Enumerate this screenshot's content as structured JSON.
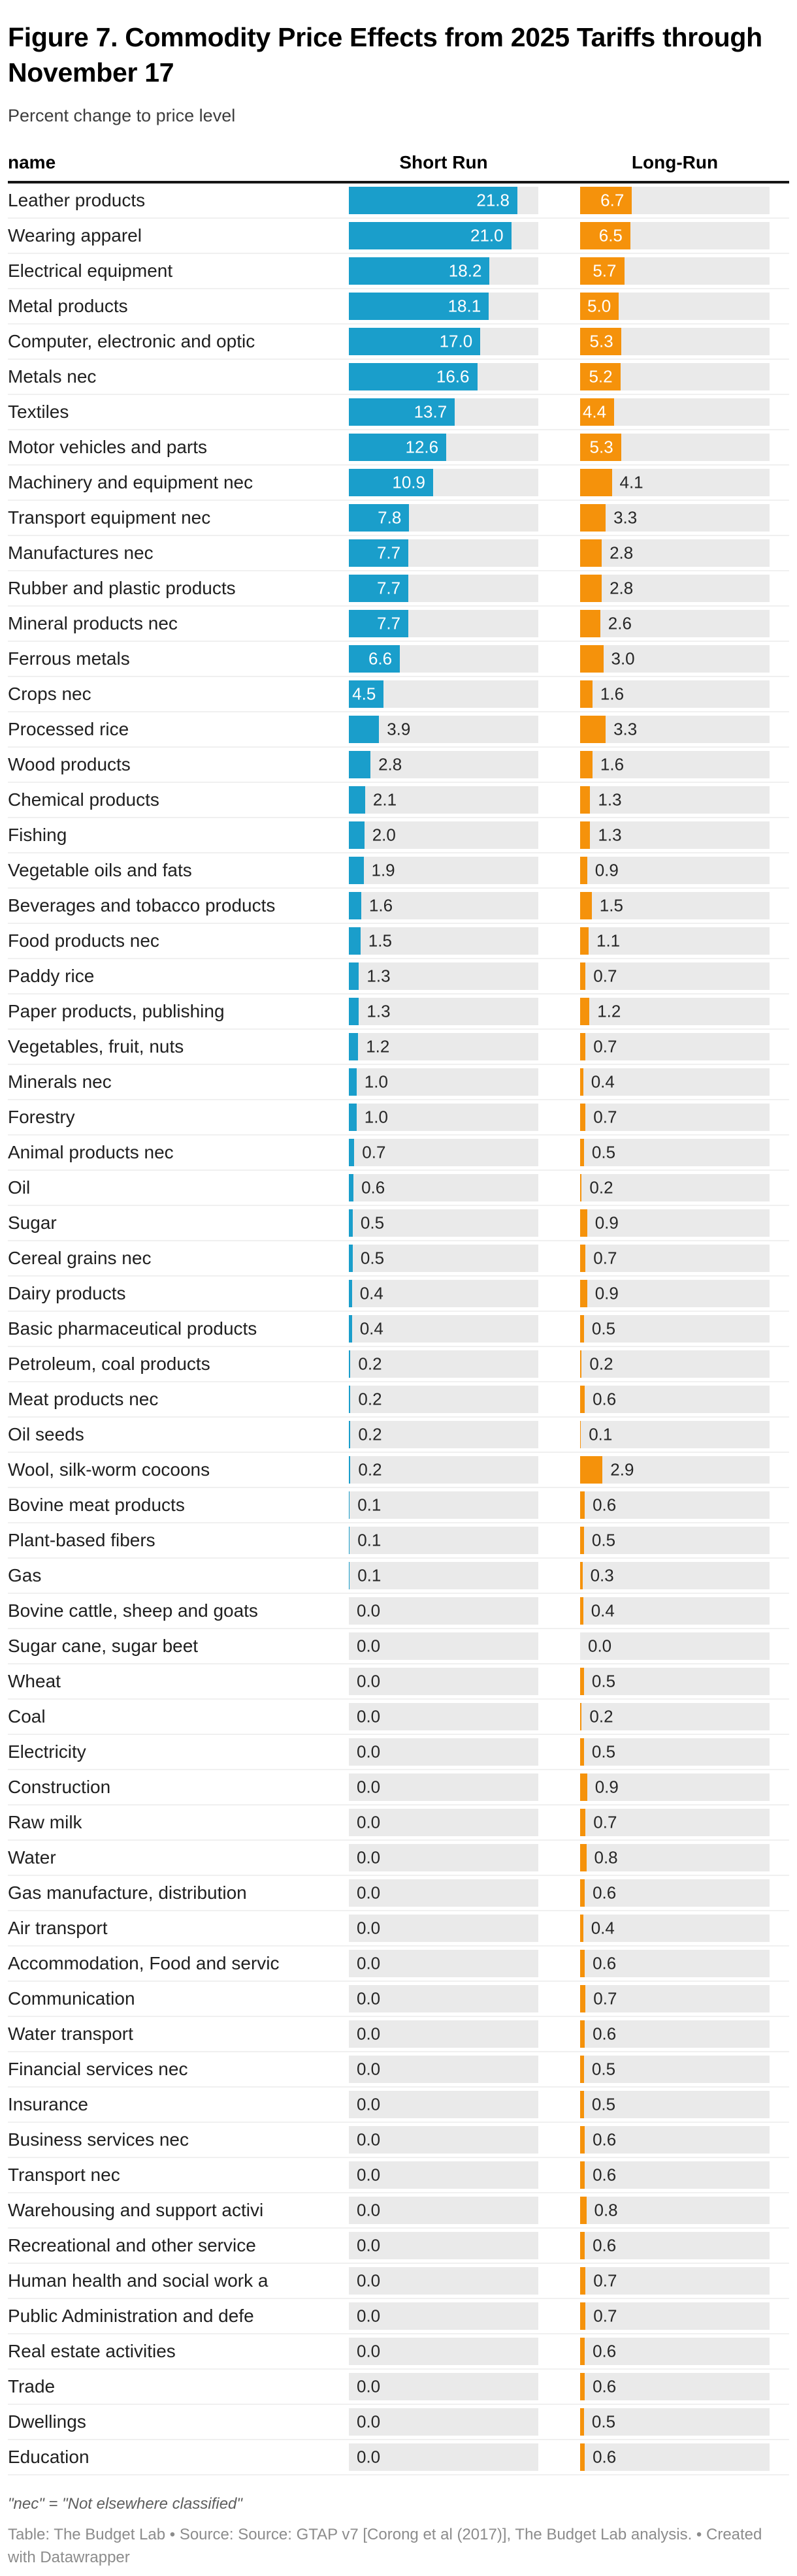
{
  "header": {
    "title": "Figure 7. Commodity Price Effects from 2025 Tariffs through November 17",
    "subtitle": "Percent change to price level"
  },
  "table": {
    "columns": {
      "name": "name",
      "short": "Short Run",
      "long": "Long-Run"
    },
    "rows": [
      {
        "name": "Leather products",
        "short": "21.8",
        "long": "6.7"
      },
      {
        "name": "Wearing apparel",
        "short": "21.0",
        "long": "6.5"
      },
      {
        "name": "Electrical equipment",
        "short": "18.2",
        "long": "5.7"
      },
      {
        "name": "Metal products",
        "short": "18.1",
        "long": "5.0"
      },
      {
        "name": "Computer, electronic and optic",
        "short": "17.0",
        "long": "5.3"
      },
      {
        "name": "Metals nec",
        "short": "16.6",
        "long": "5.2"
      },
      {
        "name": "Textiles",
        "short": "13.7",
        "long": "4.4"
      },
      {
        "name": "Motor vehicles and parts",
        "short": "12.6",
        "long": "5.3"
      },
      {
        "name": "Machinery and equipment nec",
        "short": "10.9",
        "long": "4.1"
      },
      {
        "name": "Transport equipment nec",
        "short": "7.8",
        "long": "3.3"
      },
      {
        "name": "Manufactures nec",
        "short": "7.7",
        "long": "2.8"
      },
      {
        "name": "Rubber and plastic products",
        "short": "7.7",
        "long": "2.8"
      },
      {
        "name": "Mineral products nec",
        "short": "7.7",
        "long": "2.6"
      },
      {
        "name": "Ferrous metals",
        "short": "6.6",
        "long": "3.0"
      },
      {
        "name": "Crops nec",
        "short": "4.5",
        "long": "1.6"
      },
      {
        "name": "Processed rice",
        "short": "3.9",
        "long": "3.3"
      },
      {
        "name": "Wood products",
        "short": "2.8",
        "long": "1.6"
      },
      {
        "name": "Chemical products",
        "short": "2.1",
        "long": "1.3"
      },
      {
        "name": "Fishing",
        "short": "2.0",
        "long": "1.3"
      },
      {
        "name": "Vegetable oils and fats",
        "short": "1.9",
        "long": "0.9"
      },
      {
        "name": "Beverages and tobacco products",
        "short": "1.6",
        "long": "1.5"
      },
      {
        "name": "Food products nec",
        "short": "1.5",
        "long": "1.1"
      },
      {
        "name": "Paddy rice",
        "short": "1.3",
        "long": "0.7"
      },
      {
        "name": "Paper products, publishing",
        "short": "1.3",
        "long": "1.2"
      },
      {
        "name": "Vegetables, fruit, nuts",
        "short": "1.2",
        "long": "0.7"
      },
      {
        "name": "Minerals nec",
        "short": "1.0",
        "long": "0.4"
      },
      {
        "name": "Forestry",
        "short": "1.0",
        "long": "0.7"
      },
      {
        "name": "Animal products nec",
        "short": "0.7",
        "long": "0.5"
      },
      {
        "name": "Oil",
        "short": "0.6",
        "long": "0.2"
      },
      {
        "name": "Sugar",
        "short": "0.5",
        "long": "0.9"
      },
      {
        "name": "Cereal grains nec",
        "short": "0.5",
        "long": "0.7"
      },
      {
        "name": "Dairy products",
        "short": "0.4",
        "long": "0.9"
      },
      {
        "name": "Basic pharmaceutical products",
        "short": "0.4",
        "long": "0.5"
      },
      {
        "name": "Petroleum, coal products",
        "short": "0.2",
        "long": "0.2"
      },
      {
        "name": "Meat products nec",
        "short": "0.2",
        "long": "0.6"
      },
      {
        "name": "Oil seeds",
        "short": "0.2",
        "long": "0.1"
      },
      {
        "name": "Wool, silk-worm cocoons",
        "short": "0.2",
        "long": "2.9"
      },
      {
        "name": "Bovine meat products",
        "short": "0.1",
        "long": "0.6"
      },
      {
        "name": "Plant-based fibers",
        "short": "0.1",
        "long": "0.5"
      },
      {
        "name": "Gas",
        "short": "0.1",
        "long": "0.3"
      },
      {
        "name": "Bovine cattle, sheep and goats",
        "short": "0.0",
        "long": "0.4"
      },
      {
        "name": "Sugar cane, sugar beet",
        "short": "0.0",
        "long": "0.0"
      },
      {
        "name": "Wheat",
        "short": "0.0",
        "long": "0.5"
      },
      {
        "name": "Coal",
        "short": "0.0",
        "long": "0.2"
      },
      {
        "name": "Electricity",
        "short": "0.0",
        "long": "0.5"
      },
      {
        "name": "Construction",
        "short": "0.0",
        "long": "0.9"
      },
      {
        "name": "Raw milk",
        "short": "0.0",
        "long": "0.7"
      },
      {
        "name": "Water",
        "short": "0.0",
        "long": "0.8"
      },
      {
        "name": "Gas manufacture, distribution",
        "short": "0.0",
        "long": "0.6"
      },
      {
        "name": "Air transport",
        "short": "0.0",
        "long": "0.4"
      },
      {
        "name": "Accommodation, Food and servic",
        "short": "0.0",
        "long": "0.6"
      },
      {
        "name": "Communication",
        "short": "0.0",
        "long": "0.7"
      },
      {
        "name": "Water transport",
        "short": "0.0",
        "long": "0.6"
      },
      {
        "name": "Financial services nec",
        "short": "0.0",
        "long": "0.5"
      },
      {
        "name": "Insurance",
        "short": "0.0",
        "long": "0.5"
      },
      {
        "name": "Business services nec",
        "short": "0.0",
        "long": "0.6"
      },
      {
        "name": "Transport nec",
        "short": "0.0",
        "long": "0.6"
      },
      {
        "name": "Warehousing and support activi",
        "short": "0.0",
        "long": "0.8"
      },
      {
        "name": "Recreational and other service",
        "short": "0.0",
        "long": "0.6"
      },
      {
        "name": "Human health and social work a",
        "short": "0.0",
        "long": "0.7"
      },
      {
        "name": "Public Administration and defe",
        "short": "0.0",
        "long": "0.7"
      },
      {
        "name": "Real estate activities",
        "short": "0.0",
        "long": "0.6"
      },
      {
        "name": "Trade",
        "short": "0.0",
        "long": "0.6"
      },
      {
        "name": "Dwellings",
        "short": "0.0",
        "long": "0.5"
      },
      {
        "name": "Education",
        "short": "0.0",
        "long": "0.6"
      }
    ]
  },
  "footer": {
    "note": "\"nec\" = \"Not elsewhere classified\"",
    "credits": "Table: The Budget Lab • Source: Source: GTAP v7 [Corong et al (2017)], The Budget Lab analysis. • Created with Datawrapper"
  },
  "chart_data": {
    "type": "bar",
    "orientation": "horizontal",
    "title": "Figure 7. Commodity Price Effects from 2025 Tariffs through November 17",
    "subtitle": "Percent change to price level",
    "categories": [
      "Leather products",
      "Wearing apparel",
      "Electrical equipment",
      "Metal products",
      "Computer, electronic and optic",
      "Metals nec",
      "Textiles",
      "Motor vehicles and parts",
      "Machinery and equipment nec",
      "Transport equipment nec",
      "Manufactures nec",
      "Rubber and plastic products",
      "Mineral products nec",
      "Ferrous metals",
      "Crops nec",
      "Processed rice",
      "Wood products",
      "Chemical products",
      "Fishing",
      "Vegetable oils and fats",
      "Beverages and tobacco products",
      "Food products nec",
      "Paddy rice",
      "Paper products, publishing",
      "Vegetables, fruit, nuts",
      "Minerals nec",
      "Forestry",
      "Animal products nec",
      "Oil",
      "Sugar",
      "Cereal grains nec",
      "Dairy products",
      "Basic pharmaceutical products",
      "Petroleum, coal products",
      "Meat products nec",
      "Oil seeds",
      "Wool, silk-worm cocoons",
      "Bovine meat products",
      "Plant-based fibers",
      "Gas",
      "Bovine cattle, sheep and goats",
      "Sugar cane, sugar beet",
      "Wheat",
      "Coal",
      "Electricity",
      "Construction",
      "Raw milk",
      "Water",
      "Gas manufacture, distribution",
      "Air transport",
      "Accommodation, Food and servic",
      "Communication",
      "Water transport",
      "Financial services nec",
      "Insurance",
      "Business services nec",
      "Transport nec",
      "Warehousing and support activi",
      "Recreational and other service",
      "Human health and social work a",
      "Public Administration and defe",
      "Real estate activities",
      "Trade",
      "Dwellings",
      "Education"
    ],
    "series": [
      {
        "name": "Short Run",
        "color": "#1a9ecb",
        "values": [
          21.8,
          21.0,
          18.2,
          18.1,
          17.0,
          16.6,
          13.7,
          12.6,
          10.9,
          7.8,
          7.7,
          7.7,
          7.7,
          6.6,
          4.5,
          3.9,
          2.8,
          2.1,
          2.0,
          1.9,
          1.6,
          1.5,
          1.3,
          1.3,
          1.2,
          1.0,
          1.0,
          0.7,
          0.6,
          0.5,
          0.5,
          0.4,
          0.4,
          0.2,
          0.2,
          0.2,
          0.2,
          0.1,
          0.1,
          0.1,
          0.0,
          0.0,
          0.0,
          0.0,
          0.0,
          0.0,
          0.0,
          0.0,
          0.0,
          0.0,
          0.0,
          0.0,
          0.0,
          0.0,
          0.0,
          0.0,
          0.0,
          0.0,
          0.0,
          0.0,
          0.0,
          0.0,
          0.0,
          0.0,
          0.0
        ]
      },
      {
        "name": "Long-Run",
        "color": "#f5920b",
        "values": [
          6.7,
          6.5,
          5.7,
          5.0,
          5.3,
          5.2,
          4.4,
          5.3,
          4.1,
          3.3,
          2.8,
          2.8,
          2.6,
          3.0,
          1.6,
          3.3,
          1.6,
          1.3,
          1.3,
          0.9,
          1.5,
          1.1,
          0.7,
          1.2,
          0.7,
          0.4,
          0.7,
          0.5,
          0.2,
          0.9,
          0.7,
          0.9,
          0.5,
          0.2,
          0.6,
          0.1,
          2.9,
          0.6,
          0.5,
          0.3,
          0.4,
          0.0,
          0.5,
          0.2,
          0.5,
          0.9,
          0.7,
          0.8,
          0.6,
          0.4,
          0.6,
          0.7,
          0.6,
          0.5,
          0.5,
          0.6,
          0.6,
          0.8,
          0.6,
          0.7,
          0.7,
          0.6,
          0.6,
          0.5,
          0.6
        ]
      }
    ],
    "xlim": [
      0,
      24.5
    ],
    "grid": false,
    "legend_position": "column-headers",
    "track_color": "#eaeaea",
    "footnote": "\"nec\" = \"Not elsewhere classified\"",
    "source_line": "Table: The Budget Lab • Source: Source: GTAP v7 [Corong et al (2017)], The Budget Lab analysis. • Created with Datawrapper"
  }
}
